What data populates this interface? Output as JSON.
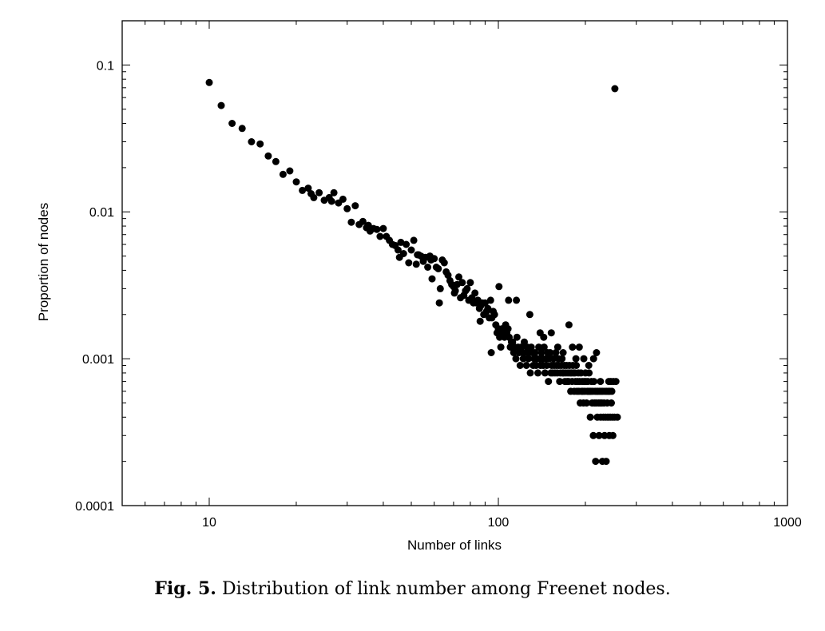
{
  "chart_data": {
    "type": "scatter",
    "xlabel": "Number of links",
    "ylabel": "Proportion of nodes",
    "xscale": "log",
    "yscale": "log",
    "xlim": [
      5,
      1000
    ],
    "ylim": [
      0.0001,
      0.2
    ],
    "grid": false,
    "xticks": [
      {
        "value": 10,
        "label": "10"
      },
      {
        "value": 100,
        "label": "100"
      },
      {
        "value": 1000,
        "label": "1000"
      }
    ],
    "yticks": [
      {
        "value": 0.0001,
        "label": "0.0001"
      },
      {
        "value": 0.001,
        "label": "0.001"
      },
      {
        "value": 0.01,
        "label": "0.01"
      },
      {
        "value": 0.1,
        "label": "0.1"
      }
    ],
    "marker_color": "#000000",
    "points": [
      [
        10,
        0.076
      ],
      [
        11,
        0.053
      ],
      [
        12,
        0.04
      ],
      [
        13,
        0.037
      ],
      [
        14,
        0.03
      ],
      [
        15,
        0.029
      ],
      [
        16,
        0.024
      ],
      [
        17,
        0.022
      ],
      [
        18,
        0.018
      ],
      [
        19,
        0.019
      ],
      [
        20,
        0.016
      ],
      [
        21,
        0.014
      ],
      [
        22,
        0.0145
      ],
      [
        23,
        0.0125
      ],
      [
        24,
        0.0135
      ],
      [
        25,
        0.012
      ],
      [
        26,
        0.0125
      ],
      [
        27,
        0.0135
      ],
      [
        28,
        0.0115
      ],
      [
        29,
        0.0122
      ],
      [
        30,
        0.0105
      ],
      [
        31,
        0.0085
      ],
      [
        32,
        0.011
      ],
      [
        33,
        0.0082
      ],
      [
        34,
        0.0086
      ],
      [
        35,
        0.0078
      ],
      [
        36,
        0.0074
      ],
      [
        37,
        0.0077
      ],
      [
        38,
        0.0076
      ],
      [
        39,
        0.0068
      ],
      [
        40,
        0.0077
      ],
      [
        41,
        0.0068
      ],
      [
        42,
        0.0064
      ],
      [
        43,
        0.006
      ],
      [
        44,
        0.0059
      ],
      [
        45,
        0.0055
      ],
      [
        46,
        0.0062
      ],
      [
        47,
        0.0052
      ],
      [
        48,
        0.006
      ],
      [
        49,
        0.0045
      ],
      [
        50,
        0.0055
      ],
      [
        51,
        0.0064
      ],
      [
        52,
        0.0044
      ],
      [
        53,
        0.0051
      ],
      [
        54,
        0.005
      ],
      [
        55,
        0.0046
      ],
      [
        56,
        0.0049
      ],
      [
        57,
        0.0042
      ],
      [
        58,
        0.005
      ],
      [
        59,
        0.0035
      ],
      [
        60,
        0.0048
      ],
      [
        61,
        0.0042
      ],
      [
        62,
        0.0041
      ],
      [
        63,
        0.003
      ],
      [
        64,
        0.0047
      ],
      [
        65,
        0.0045
      ],
      [
        66,
        0.0039
      ],
      [
        67,
        0.0037
      ],
      [
        68,
        0.0034
      ],
      [
        69,
        0.0032
      ],
      [
        70,
        0.0031
      ],
      [
        71,
        0.0029
      ],
      [
        72,
        0.0032
      ],
      [
        73,
        0.0036
      ],
      [
        74,
        0.0026
      ],
      [
        75,
        0.0033
      ],
      [
        76,
        0.0027
      ],
      [
        77,
        0.0029
      ],
      [
        78,
        0.003
      ],
      [
        79,
        0.0025
      ],
      [
        80,
        0.0033
      ],
      [
        81,
        0.0026
      ],
      [
        82,
        0.0024
      ],
      [
        83,
        0.0028
      ],
      [
        84,
        0.0024
      ],
      [
        85,
        0.0025
      ],
      [
        86,
        0.0022
      ],
      [
        87,
        0.0023
      ],
      [
        88,
        0.0024
      ],
      [
        89,
        0.002
      ],
      [
        90,
        0.0024
      ],
      [
        91,
        0.0021
      ],
      [
        92,
        0.0022
      ],
      [
        93,
        0.0019
      ],
      [
        94,
        0.0025
      ],
      [
        95,
        0.0019
      ],
      [
        96,
        0.0021
      ],
      [
        97,
        0.002
      ],
      [
        98,
        0.0017
      ],
      [
        99,
        0.0015
      ],
      [
        100,
        0.0016
      ],
      [
        101,
        0.0014
      ],
      [
        102,
        0.0012
      ],
      [
        103,
        0.0016
      ],
      [
        104,
        0.0015
      ],
      [
        105,
        0.0014
      ],
      [
        106,
        0.0017
      ],
      [
        107,
        0.0015
      ],
      [
        108,
        0.0016
      ],
      [
        109,
        0.0014
      ],
      [
        110,
        0.0012
      ],
      [
        111,
        0.0013
      ],
      [
        112,
        0.0013
      ],
      [
        113,
        0.0011
      ],
      [
        114,
        0.0012
      ],
      [
        115,
        0.001
      ],
      [
        116,
        0.0014
      ],
      [
        117,
        0.0012
      ],
      [
        118,
        0.0011
      ],
      [
        119,
        0.0009
      ],
      [
        120,
        0.0012
      ],
      [
        121,
        0.0011
      ],
      [
        122,
        0.001
      ],
      [
        123,
        0.0013
      ],
      [
        124,
        0.0011
      ],
      [
        125,
        0.0009
      ],
      [
        126,
        0.0012
      ],
      [
        127,
        0.001
      ],
      [
        128,
        0.0011
      ],
      [
        129,
        0.0008
      ],
      [
        130,
        0.0012
      ],
      [
        131,
        0.0011
      ],
      [
        132,
        0.0009
      ],
      [
        133,
        0.001
      ],
      [
        134,
        0.0011
      ],
      [
        135,
        0.0009
      ],
      [
        136,
        0.001
      ],
      [
        137,
        0.0008
      ],
      [
        138,
        0.0012
      ],
      [
        139,
        0.001
      ],
      [
        140,
        0.0009
      ],
      [
        141,
        0.0011
      ],
      [
        142,
        0.001
      ],
      [
        143,
        0.0009
      ],
      [
        144,
        0.0012
      ],
      [
        145,
        0.0008
      ],
      [
        146,
        0.001
      ],
      [
        147,
        0.0009
      ],
      [
        148,
        0.0011
      ],
      [
        149,
        0.0007
      ],
      [
        150,
        0.001
      ],
      [
        151,
        0.0011
      ],
      [
        152,
        0.0008
      ],
      [
        153,
        0.0009
      ],
      [
        154,
        0.0008
      ],
      [
        155,
        0.001
      ],
      [
        156,
        0.0009
      ],
      [
        157,
        0.0008
      ],
      [
        158,
        0.0011
      ],
      [
        159,
        0.0009
      ],
      [
        160,
        0.0008
      ],
      [
        161,
        0.001
      ],
      [
        162,
        0.0009
      ],
      [
        163,
        0.0007
      ],
      [
        164,
        0.0008
      ],
      [
        165,
        0.0009
      ],
      [
        166,
        0.001
      ],
      [
        167,
        0.0008
      ],
      [
        168,
        0.0008
      ],
      [
        169,
        0.0009
      ],
      [
        170,
        0.0007
      ],
      [
        171,
        0.0008
      ],
      [
        172,
        0.0009
      ],
      [
        173,
        0.0007
      ],
      [
        174,
        0.0008
      ],
      [
        175,
        0.0007
      ],
      [
        176,
        0.0009
      ],
      [
        177,
        0.0008
      ],
      [
        178,
        0.0006
      ],
      [
        179,
        0.0008
      ],
      [
        180,
        0.0007
      ],
      [
        181,
        0.0009
      ],
      [
        182,
        0.0008
      ],
      [
        183,
        0.0006
      ],
      [
        184,
        0.0008
      ],
      [
        185,
        0.0007
      ],
      [
        186,
        0.0009
      ],
      [
        187,
        0.0006
      ],
      [
        188,
        0.0007
      ],
      [
        189,
        0.0008
      ],
      [
        190,
        0.0006
      ],
      [
        191,
        0.0007
      ],
      [
        192,
        0.0005
      ],
      [
        193,
        0.0008
      ],
      [
        194,
        0.0006
      ],
      [
        195,
        0.0007
      ],
      [
        196,
        0.0006
      ],
      [
        197,
        0.0005
      ],
      [
        198,
        0.0007
      ],
      [
        199,
        0.0006
      ],
      [
        200,
        0.0008
      ],
      [
        201,
        0.0007
      ],
      [
        202,
        0.0005
      ],
      [
        203,
        0.0006
      ],
      [
        204,
        0.0007
      ],
      [
        205,
        0.0006
      ],
      [
        206,
        0.0008
      ],
      [
        207,
        0.0006
      ],
      [
        208,
        0.0004
      ],
      [
        209,
        0.0006
      ],
      [
        210,
        0.0007
      ],
      [
        211,
        0.0005
      ],
      [
        212,
        0.0006
      ],
      [
        213,
        0.0003
      ],
      [
        214,
        0.0007
      ],
      [
        215,
        0.0005
      ],
      [
        216,
        0.0006
      ],
      [
        217,
        0.0002
      ],
      [
        218,
        0.0005
      ],
      [
        219,
        0.0006
      ],
      [
        220,
        0.0004
      ],
      [
        221,
        0.0006
      ],
      [
        222,
        0.0005
      ],
      [
        223,
        0.0003
      ],
      [
        224,
        0.0006
      ],
      [
        225,
        0.0005
      ],
      [
        226,
        0.0004
      ],
      [
        227,
        0.0006
      ],
      [
        228,
        0.0005
      ],
      [
        229,
        0.0002
      ],
      [
        230,
        0.0006
      ],
      [
        231,
        0.0004
      ],
      [
        232,
        0.0005
      ],
      [
        233,
        0.0003
      ],
      [
        234,
        0.0006
      ],
      [
        235,
        0.0004
      ],
      [
        236,
        0.0002
      ],
      [
        237,
        0.0006
      ],
      [
        238,
        0.0005
      ],
      [
        239,
        0.0004
      ],
      [
        240,
        0.0006
      ],
      [
        241,
        0.0007
      ],
      [
        242,
        0.0003
      ],
      [
        243,
        0.0006
      ],
      [
        244,
        0.0004
      ],
      [
        245,
        0.0007
      ],
      [
        246,
        0.0005
      ],
      [
        247,
        0.0006
      ],
      [
        248,
        0.0004
      ],
      [
        249,
        0.0003
      ],
      [
        250,
        0.0007
      ],
      [
        252,
        0.0004
      ],
      [
        255,
        0.0007
      ],
      [
        258,
        0.0004
      ],
      [
        22.5,
        0.0133
      ],
      [
        26.5,
        0.0118
      ],
      [
        35.5,
        0.0081
      ],
      [
        45.5,
        0.0049
      ],
      [
        52.5,
        0.0051
      ],
      [
        58.5,
        0.0047
      ],
      [
        62.5,
        0.0024
      ],
      [
        70.5,
        0.0028
      ],
      [
        86.5,
        0.0018
      ],
      [
        94.5,
        0.0011
      ],
      [
        100.5,
        0.0031
      ],
      [
        108.5,
        0.0025
      ],
      [
        115.5,
        0.0025
      ],
      [
        128.5,
        0.002
      ],
      [
        139.5,
        0.0015
      ],
      [
        143.5,
        0.0014
      ],
      [
        152.5,
        0.0015
      ],
      [
        160.5,
        0.0012
      ],
      [
        167.5,
        0.0011
      ],
      [
        175.5,
        0.0017
      ],
      [
        180.5,
        0.0012
      ],
      [
        185.5,
        0.001
      ],
      [
        190.5,
        0.0012
      ],
      [
        197.5,
        0.001
      ],
      [
        205.5,
        0.0009
      ],
      [
        213.5,
        0.001
      ],
      [
        218.5,
        0.0011
      ],
      [
        225.5,
        0.0007
      ],
      [
        253,
        0.069
      ]
    ]
  },
  "caption": {
    "label": "Fig. 5.",
    "text": "Distribution of link number among Freenet nodes."
  }
}
